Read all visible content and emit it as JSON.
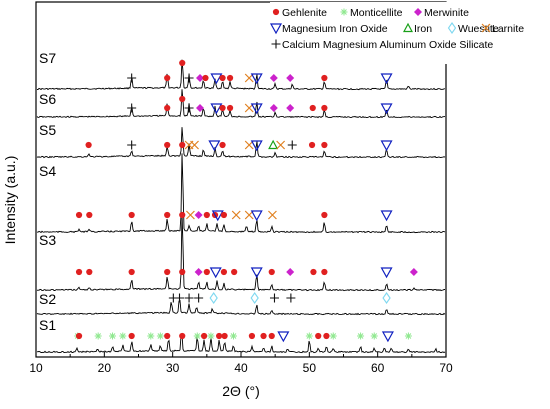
{
  "chart_data": {
    "type": "line",
    "xlabel": "2Θ (°)",
    "ylabel": "Intensity (a.u.)",
    "xlim": [
      10,
      70
    ],
    "xticks": [
      10,
      20,
      30,
      40,
      50,
      60,
      70
    ],
    "y_ticks_shown": false,
    "legend_position": "top-right",
    "legend": [
      {
        "label": "Gehlenite",
        "marker": "filled-circle",
        "color": "#e02020"
      },
      {
        "label": "Monticellite",
        "marker": "asterisk",
        "color": "#90e890"
      },
      {
        "label": "Merwinite",
        "marker": "filled-diamond",
        "color": "#cc22cc"
      },
      {
        "label": "Magnesium Iron Oxide",
        "marker": "open-triangle-down",
        "color": "#1020c0"
      },
      {
        "label": "Iron",
        "marker": "open-triangle-up",
        "color": "#18a018"
      },
      {
        "label": "Wuestite",
        "marker": "open-diamond",
        "color": "#7fd8f0"
      },
      {
        "label": "Larnite",
        "marker": "x",
        "color": "#e08020"
      },
      {
        "label": "Calcium Magnesium Aluminum Oxide Silicate",
        "marker": "plus",
        "color": "#111111"
      }
    ],
    "series": [
      {
        "name": "S7",
        "peaks": [
          {
            "x": 24.0,
            "h": 12
          },
          {
            "x": 29.2,
            "h": 14
          },
          {
            "x": 31.4,
            "h": 30
          },
          {
            "x": 32.4,
            "h": 14
          },
          {
            "x": 34.5,
            "h": 8
          },
          {
            "x": 36.2,
            "h": 9
          },
          {
            "x": 37.3,
            "h": 7
          },
          {
            "x": 38.4,
            "h": 7
          },
          {
            "x": 42.3,
            "h": 16
          },
          {
            "x": 45.0,
            "h": 5
          },
          {
            "x": 47.5,
            "h": 5
          },
          {
            "x": 52.2,
            "h": 8
          },
          {
            "x": 61.3,
            "h": 10
          },
          {
            "x": 64.5,
            "h": 3
          }
        ],
        "markers": [
          {
            "type": "plus",
            "x": 24.0
          },
          {
            "type": "gehlenite",
            "x": 29.2
          },
          {
            "type": "gehlenite",
            "x": 31.4
          },
          {
            "type": "plus",
            "x": 32.4
          },
          {
            "type": "merwinite",
            "x": 34.0
          },
          {
            "type": "gehlenite",
            "x": 34.8
          },
          {
            "type": "mgfeo",
            "x": 36.4
          },
          {
            "type": "gehlenite",
            "x": 37.3
          },
          {
            "type": "gehlenite",
            "x": 38.4
          },
          {
            "type": "larnite",
            "x": 41.2
          },
          {
            "type": "mgfeo",
            "x": 42.3
          },
          {
            "type": "merwinite",
            "x": 44.8
          },
          {
            "type": "merwinite",
            "x": 47.2
          },
          {
            "type": "gehlenite",
            "x": 52.2
          },
          {
            "type": "mgfeo",
            "x": 61.3
          }
        ]
      },
      {
        "name": "S6",
        "peaks": [
          {
            "x": 24.0,
            "h": 10
          },
          {
            "x": 29.2,
            "h": 12
          },
          {
            "x": 31.4,
            "h": 28
          },
          {
            "x": 32.4,
            "h": 12
          },
          {
            "x": 34.5,
            "h": 8
          },
          {
            "x": 36.2,
            "h": 10
          },
          {
            "x": 37.3,
            "h": 7
          },
          {
            "x": 38.4,
            "h": 6
          },
          {
            "x": 42.3,
            "h": 16
          },
          {
            "x": 45.0,
            "h": 5
          },
          {
            "x": 52.2,
            "h": 7
          },
          {
            "x": 61.3,
            "h": 9
          }
        ],
        "markers": [
          {
            "type": "plus",
            "x": 24.0
          },
          {
            "type": "gehlenite",
            "x": 29.2
          },
          {
            "type": "gehlenite",
            "x": 31.4
          },
          {
            "type": "plus",
            "x": 32.4
          },
          {
            "type": "merwinite",
            "x": 34.0
          },
          {
            "type": "mgfeo",
            "x": 36.4
          },
          {
            "type": "gehlenite",
            "x": 37.3
          },
          {
            "type": "gehlenite",
            "x": 38.4
          },
          {
            "type": "larnite",
            "x": 41.2
          },
          {
            "type": "mgfeo",
            "x": 42.3
          },
          {
            "type": "merwinite",
            "x": 44.8
          },
          {
            "type": "merwinite",
            "x": 47.2
          },
          {
            "type": "gehlenite",
            "x": 50.5
          },
          {
            "type": "gehlenite",
            "x": 52.2
          },
          {
            "type": "mgfeo",
            "x": 61.3
          }
        ]
      },
      {
        "name": "S5",
        "peaks": [
          {
            "x": 17.7,
            "h": 3
          },
          {
            "x": 24.0,
            "h": 6
          },
          {
            "x": 29.2,
            "h": 10
          },
          {
            "x": 31.4,
            "h": 30
          },
          {
            "x": 32.4,
            "h": 12
          },
          {
            "x": 34.5,
            "h": 6
          },
          {
            "x": 36.2,
            "h": 9
          },
          {
            "x": 37.3,
            "h": 6
          },
          {
            "x": 42.3,
            "h": 16
          },
          {
            "x": 45.0,
            "h": 4
          },
          {
            "x": 52.2,
            "h": 6
          },
          {
            "x": 61.3,
            "h": 8
          }
        ],
        "markers": [
          {
            "type": "gehlenite",
            "x": 17.7
          },
          {
            "type": "plus",
            "x": 24.0
          },
          {
            "type": "gehlenite",
            "x": 29.2
          },
          {
            "type": "gehlenite",
            "x": 31.4
          },
          {
            "type": "larnite",
            "x": 32.4
          },
          {
            "type": "larnite",
            "x": 33.2
          },
          {
            "type": "mgfeo",
            "x": 36.1
          },
          {
            "type": "gehlenite",
            "x": 37.3
          },
          {
            "type": "larnite",
            "x": 41.2
          },
          {
            "type": "mgfeo",
            "x": 42.3
          },
          {
            "type": "iron",
            "x": 44.7
          },
          {
            "type": "larnite",
            "x": 45.8
          },
          {
            "type": "plus",
            "x": 47.5
          },
          {
            "type": "gehlenite",
            "x": 50.4
          },
          {
            "type": "gehlenite",
            "x": 52.2
          },
          {
            "type": "mgfeo",
            "x": 61.3
          }
        ]
      },
      {
        "name": "S4",
        "peaks": [
          {
            "x": 16.3,
            "h": 3
          },
          {
            "x": 17.8,
            "h": 3
          },
          {
            "x": 24.0,
            "h": 12
          },
          {
            "x": 29.2,
            "h": 14
          },
          {
            "x": 31.4,
            "h": 90
          },
          {
            "x": 32.4,
            "h": 6
          },
          {
            "x": 33.8,
            "h": 6
          },
          {
            "x": 35.0,
            "h": 8
          },
          {
            "x": 36.5,
            "h": 9
          },
          {
            "x": 37.5,
            "h": 8
          },
          {
            "x": 40.8,
            "h": 6
          },
          {
            "x": 42.3,
            "h": 14
          },
          {
            "x": 44.5,
            "h": 6
          },
          {
            "x": 52.2,
            "h": 11
          },
          {
            "x": 61.3,
            "h": 8
          }
        ],
        "markers": [
          {
            "type": "gehlenite",
            "x": 16.3
          },
          {
            "type": "gehlenite",
            "x": 17.8
          },
          {
            "type": "gehlenite",
            "x": 24.0
          },
          {
            "type": "gehlenite",
            "x": 29.2
          },
          {
            "type": "gehlenite",
            "x": 31.4
          },
          {
            "type": "larnite",
            "x": 32.6
          },
          {
            "type": "merwinite",
            "x": 33.8
          },
          {
            "type": "gehlenite",
            "x": 35.0
          },
          {
            "type": "gehlenite",
            "x": 36.2
          },
          {
            "type": "mgfeo",
            "x": 36.6
          },
          {
            "type": "gehlenite",
            "x": 37.5
          },
          {
            "type": "larnite",
            "x": 39.3
          },
          {
            "type": "larnite",
            "x": 41.2
          },
          {
            "type": "mgfeo",
            "x": 42.3
          },
          {
            "type": "larnite",
            "x": 44.6
          },
          {
            "type": "gehlenite",
            "x": 52.2
          },
          {
            "type": "mgfeo",
            "x": 61.3
          }
        ]
      },
      {
        "name": "S3",
        "peaks": [
          {
            "x": 16.3,
            "h": 3
          },
          {
            "x": 17.8,
            "h": 3
          },
          {
            "x": 24.0,
            "h": 12
          },
          {
            "x": 29.2,
            "h": 14
          },
          {
            "x": 31.4,
            "h": 90
          },
          {
            "x": 33.8,
            "h": 8
          },
          {
            "x": 35.0,
            "h": 8
          },
          {
            "x": 36.5,
            "h": 10
          },
          {
            "x": 37.5,
            "h": 7
          },
          {
            "x": 42.3,
            "h": 18
          },
          {
            "x": 44.5,
            "h": 6
          },
          {
            "x": 52.2,
            "h": 10
          },
          {
            "x": 61.3,
            "h": 8
          },
          {
            "x": 65.3,
            "h": 3
          }
        ],
        "markers": [
          {
            "type": "gehlenite",
            "x": 16.3
          },
          {
            "type": "gehlenite",
            "x": 17.8
          },
          {
            "type": "gehlenite",
            "x": 24.0
          },
          {
            "type": "gehlenite",
            "x": 29.2
          },
          {
            "type": "gehlenite",
            "x": 31.4
          },
          {
            "type": "merwinite",
            "x": 33.8
          },
          {
            "type": "gehlenite",
            "x": 35.0
          },
          {
            "type": "mgfeo",
            "x": 36.3
          },
          {
            "type": "gehlenite",
            "x": 37.5
          },
          {
            "type": "gehlenite",
            "x": 39.0
          },
          {
            "type": "mgfeo",
            "x": 42.3
          },
          {
            "type": "gehlenite",
            "x": 44.5
          },
          {
            "type": "merwinite",
            "x": 47.2
          },
          {
            "type": "gehlenite",
            "x": 50.6
          },
          {
            "type": "gehlenite",
            "x": 52.2
          },
          {
            "type": "mgfeo",
            "x": 61.3
          },
          {
            "type": "merwinite",
            "x": 65.3
          }
        ]
      },
      {
        "name": "S2",
        "peaks": [
          {
            "x": 29.8,
            "h": 12
          },
          {
            "x": 31.0,
            "h": 16
          },
          {
            "x": 32.4,
            "h": 9
          },
          {
            "x": 33.5,
            "h": 6
          },
          {
            "x": 35.8,
            "h": 4
          },
          {
            "x": 42.3,
            "h": 10
          },
          {
            "x": 44.5,
            "h": 4
          },
          {
            "x": 61.3,
            "h": 5
          }
        ],
        "markers": [
          {
            "type": "plus",
            "x": 30.1
          },
          {
            "type": "plus",
            "x": 31.0
          },
          {
            "type": "plus",
            "x": 32.4
          },
          {
            "type": "plus",
            "x": 33.8
          },
          {
            "type": "wuestite",
            "x": 36.0
          },
          {
            "type": "wuestite",
            "x": 42.0
          },
          {
            "type": "plus",
            "x": 44.9
          },
          {
            "type": "plus",
            "x": 47.3
          },
          {
            "type": "wuestite",
            "x": 61.3
          }
        ]
      },
      {
        "name": "S1",
        "peaks": [
          {
            "x": 16.0,
            "h": 4
          },
          {
            "x": 19.0,
            "h": 3
          },
          {
            "x": 21.2,
            "h": 5
          },
          {
            "x": 22.7,
            "h": 6
          },
          {
            "x": 24.0,
            "h": 10
          },
          {
            "x": 26.8,
            "h": 7
          },
          {
            "x": 28.2,
            "h": 5
          },
          {
            "x": 29.4,
            "h": 12
          },
          {
            "x": 31.3,
            "h": 20
          },
          {
            "x": 33.6,
            "h": 15
          },
          {
            "x": 34.6,
            "h": 12
          },
          {
            "x": 35.6,
            "h": 14
          },
          {
            "x": 36.8,
            "h": 12
          },
          {
            "x": 37.6,
            "h": 10
          },
          {
            "x": 38.9,
            "h": 6
          },
          {
            "x": 41.6,
            "h": 6
          },
          {
            "x": 43.3,
            "h": 5
          },
          {
            "x": 44.5,
            "h": 6
          },
          {
            "x": 46.8,
            "h": 4
          },
          {
            "x": 50.0,
            "h": 12
          },
          {
            "x": 51.3,
            "h": 4
          },
          {
            "x": 52.5,
            "h": 6
          },
          {
            "x": 53.5,
            "h": 4
          },
          {
            "x": 57.5,
            "h": 6
          },
          {
            "x": 59.5,
            "h": 4
          },
          {
            "x": 61.0,
            "h": 5
          },
          {
            "x": 62.0,
            "h": 4
          },
          {
            "x": 64.5,
            "h": 3
          },
          {
            "x": 68.5,
            "h": 3
          }
        ],
        "markers": [
          {
            "type": "monticellite",
            "x": 16.1
          },
          {
            "type": "gehlenite",
            "x": 16.3
          },
          {
            "type": "monticellite",
            "x": 19.1
          },
          {
            "type": "monticellite",
            "x": 21.2
          },
          {
            "type": "monticellite",
            "x": 22.7
          },
          {
            "type": "gehlenite",
            "x": 24.0
          },
          {
            "type": "monticellite",
            "x": 26.8
          },
          {
            "type": "monticellite",
            "x": 28.2
          },
          {
            "type": "gehlenite",
            "x": 29.2
          },
          {
            "type": "gehlenite",
            "x": 31.4
          },
          {
            "type": "monticellite",
            "x": 33.6
          },
          {
            "type": "gehlenite",
            "x": 34.6
          },
          {
            "type": "monticellite",
            "x": 35.6
          },
          {
            "type": "gehlenite",
            "x": 36.8
          },
          {
            "type": "gehlenite",
            "x": 37.6
          },
          {
            "type": "monticellite",
            "x": 38.9
          },
          {
            "type": "gehlenite",
            "x": 41.6
          },
          {
            "type": "gehlenite",
            "x": 43.3
          },
          {
            "type": "gehlenite",
            "x": 44.5
          },
          {
            "type": "mgfeo",
            "x": 46.2
          },
          {
            "type": "monticellite",
            "x": 50.0
          },
          {
            "type": "gehlenite",
            "x": 51.3
          },
          {
            "type": "gehlenite",
            "x": 52.5
          },
          {
            "type": "monticellite",
            "x": 53.5
          },
          {
            "type": "monticellite",
            "x": 57.5
          },
          {
            "type": "monticellite",
            "x": 59.5
          },
          {
            "type": "mgfeo",
            "x": 61.5
          },
          {
            "type": "monticellite",
            "x": 64.5
          }
        ]
      }
    ]
  }
}
